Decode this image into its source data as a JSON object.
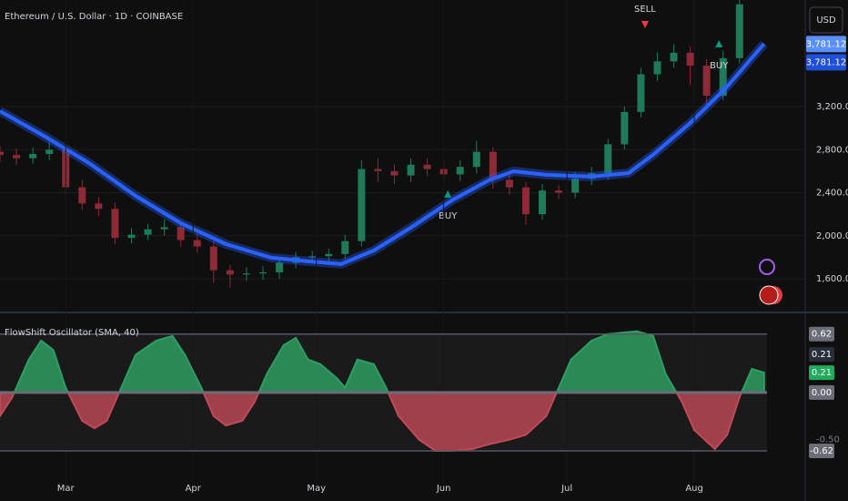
{
  "header": {
    "symbol_title": "Ethereum / U.S. Dollar · 1D · COINBASE",
    "currency_button": "USD"
  },
  "chart_data": [
    {
      "type": "candlestick",
      "xlim": [
        -16,
        180
      ],
      "ylim": [
        1296,
        4190
      ],
      "yticks": [
        {
          "value": 1600,
          "label": "1,600.00"
        },
        {
          "value": 2000,
          "label": "2,000.00"
        },
        {
          "value": 2400,
          "label": "2,400.00"
        },
        {
          "value": 2800,
          "label": "2,800.00"
        },
        {
          "value": 3200,
          "label": "3,200.00"
        }
      ],
      "grid": true,
      "up_color": "#1f7a5a",
      "down_color": "#8c2a35",
      "x": [
        -16,
        -12,
        -8,
        -4,
        0,
        4,
        8,
        12,
        16,
        20,
        24,
        28,
        32,
        36,
        40,
        44,
        48,
        52,
        56,
        60,
        64,
        68,
        72,
        76,
        80,
        84,
        88,
        92,
        96,
        100,
        104,
        108,
        112,
        116,
        120,
        124,
        128,
        132,
        136,
        140,
        144,
        148,
        152,
        156,
        160,
        164
      ],
      "open": [
        2780,
        2750,
        2720,
        2760,
        2800,
        2450,
        2300,
        2250,
        1980,
        2010,
        2060,
        2080,
        1960,
        1900,
        1680,
        1640,
        1650,
        1660,
        1750,
        1800,
        1810,
        1830,
        1950,
        2620,
        2600,
        2560,
        2660,
        2620,
        2570,
        2640,
        2780,
        2520,
        2450,
        2200,
        2420,
        2400,
        2530,
        2580,
        2850,
        3150,
        3500,
        3620,
        3700,
        3580,
        3300,
        3650
      ],
      "high": [
        2840,
        2810,
        2820,
        2870,
        2840,
        2520,
        2360,
        2310,
        2070,
        2110,
        2150,
        2130,
        2020,
        1950,
        1730,
        1710,
        1720,
        1800,
        1850,
        1860,
        1880,
        2010,
        2700,
        2720,
        2660,
        2720,
        2720,
        2680,
        2700,
        2880,
        2820,
        2580,
        2500,
        2480,
        2470,
        2590,
        2640,
        2900,
        3200,
        3560,
        3700,
        3780,
        3760,
        3640,
        3720,
        4250
      ],
      "low": [
        2690,
        2660,
        2670,
        2700,
        2380,
        2240,
        2180,
        1920,
        1930,
        1960,
        2000,
        1900,
        1840,
        1560,
        1520,
        1580,
        1590,
        1600,
        1700,
        1750,
        1760,
        1780,
        1900,
        2500,
        2480,
        2500,
        2560,
        2500,
        2510,
        2580,
        2440,
        2380,
        2100,
        2150,
        2340,
        2350,
        2470,
        2520,
        2800,
        3100,
        3440,
        3560,
        3400,
        3220,
        3260,
        3600
      ],
      "close": [
        2750,
        2720,
        2760,
        2800,
        2450,
        2300,
        2250,
        1980,
        2010,
        2060,
        2080,
        1960,
        1900,
        1680,
        1640,
        1650,
        1660,
        1750,
        1800,
        1810,
        1830,
        1950,
        2620,
        2600,
        2560,
        2660,
        2620,
        2570,
        2640,
        2780,
        2520,
        2450,
        2200,
        2420,
        2400,
        2530,
        2580,
        2850,
        3150,
        3500,
        3620,
        3700,
        3580,
        3300,
        3650,
        4150
      ],
      "sma": {
        "color": "#2962ff",
        "x": [
          -16,
          -5,
          6,
          17,
          28,
          39,
          50,
          59,
          67,
          75,
          84,
          94,
          103,
          109,
          117,
          128,
          137,
          143,
          152,
          161,
          170
        ],
        "values": [
          3158,
          2921,
          2667,
          2371,
          2117,
          1922,
          1796,
          1762,
          1737,
          1863,
          2075,
          2329,
          2515,
          2599,
          2566,
          2549,
          2582,
          2752,
          3048,
          3386,
          3784
        ]
      },
      "annotations": [
        {
          "text": "BUY",
          "x": 93,
          "y": 2388,
          "color": "#089981",
          "text_side": "below"
        },
        {
          "text": "SELL",
          "x": 141,
          "y": 3961,
          "color": "#f23645",
          "text_side": "above"
        },
        {
          "text": "BUY",
          "x": 159,
          "y": 3784,
          "color": "#089981",
          "text_side": "below"
        }
      ],
      "price_labels": [
        {
          "value": 3781.12,
          "label": "3,781.12",
          "color": "#5b8ff9"
        },
        {
          "value": 3781.12,
          "label": "3,781.12",
          "color": "#1e4fd6"
        }
      ]
    },
    {
      "type": "area",
      "title": "FlowShift Oscillator (SMA, 40)",
      "xlim": [
        -16,
        180
      ],
      "ylim": [
        -0.91,
        0.83
      ],
      "xticks": [
        {
          "value": 0,
          "label": "Mar"
        },
        {
          "value": 31,
          "label": "Apr"
        },
        {
          "value": 61,
          "label": "May"
        },
        {
          "value": 92,
          "label": "Jun"
        },
        {
          "value": 122,
          "label": "Jul"
        },
        {
          "value": 153,
          "label": "Aug"
        }
      ],
      "yticks": [
        {
          "value": -0.5,
          "label": "-0.50"
        }
      ],
      "levels": [
        {
          "value": 0.62,
          "label": "0.62"
        },
        {
          "value": 0,
          "label": "0.00"
        },
        {
          "value": -0.62,
          "label": "-0.62"
        }
      ],
      "pos_color": "#2e9e62",
      "neg_color": "#c04a58",
      "x": [
        -16,
        -13,
        -9,
        -6,
        -3,
        0,
        4,
        7,
        10,
        14,
        17,
        22,
        26,
        29,
        33,
        36,
        39,
        43,
        46,
        49,
        53,
        56,
        59,
        62,
        66,
        68,
        71,
        75,
        78,
        81,
        86,
        90,
        94,
        99,
        103,
        108,
        112,
        117,
        120,
        123,
        128,
        132,
        139,
        143,
        146,
        150,
        153,
        158,
        161,
        164,
        167,
        170
      ],
      "values": [
        -0.25,
        -0.05,
        0.35,
        0.55,
        0.45,
        0.05,
        -0.3,
        -0.38,
        -0.3,
        0.1,
        0.4,
        0.55,
        0.6,
        0.4,
        0.05,
        -0.25,
        -0.35,
        -0.3,
        -0.1,
        0.2,
        0.5,
        0.58,
        0.35,
        0.3,
        0.15,
        0.05,
        0.35,
        0.3,
        0.05,
        -0.25,
        -0.5,
        -0.62,
        -0.62,
        -0.6,
        -0.55,
        -0.5,
        -0.45,
        -0.25,
        0.05,
        0.35,
        0.55,
        0.62,
        0.65,
        0.6,
        0.2,
        -0.1,
        -0.4,
        -0.6,
        -0.45,
        -0.05,
        0.25,
        0.21
      ],
      "last_value_labels": [
        {
          "value": 0.21,
          "label": "0.21",
          "color": "#2a2e39"
        },
        {
          "value": 0.21,
          "label": "0.21",
          "color": "#22ab5c"
        }
      ]
    }
  ]
}
